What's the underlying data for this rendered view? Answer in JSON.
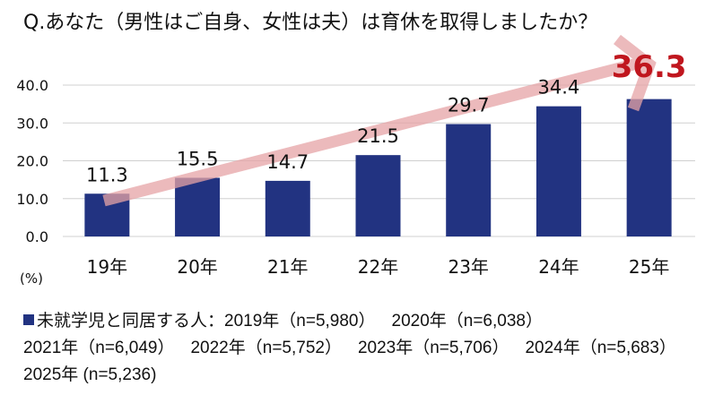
{
  "chart_data": {
    "type": "bar",
    "title": "Q.あなた（男性はご自身、女性は夫）は育休を取得しましたか？",
    "categories": [
      "19年",
      "20年",
      "21年",
      "22年",
      "23年",
      "24年",
      "25年"
    ],
    "values": [
      11.3,
      15.5,
      14.7,
      21.5,
      29.7,
      34.4,
      36.3
    ],
    "value_labels": [
      "11.3",
      "15.5",
      "14.7",
      "21.5",
      "29.7",
      "34.4",
      "36.3"
    ],
    "highlight_index": 6,
    "ylabel": "(%)",
    "ylim": [
      0,
      40
    ],
    "yticks": [
      "0.0",
      "10.0",
      "20.0",
      "30.0",
      "40.0"
    ],
    "ytick_values": [
      0,
      10,
      20,
      30,
      40
    ],
    "grid": true,
    "bar_color": "#223381",
    "highlight_color": "#c0161e",
    "trend_arrow_color": "#e6a3a6",
    "legend": {
      "series_name": "未就学児と同居する人：",
      "entries": [
        "2019年（n=5,980）",
        "2020年（n=6,038）",
        "2021年（n=6,049）",
        "2022年（n=5,752）",
        "2023年（n=5,706）",
        "2024年（n=5,683）",
        "2025年 (n=5,236)"
      ]
    }
  }
}
